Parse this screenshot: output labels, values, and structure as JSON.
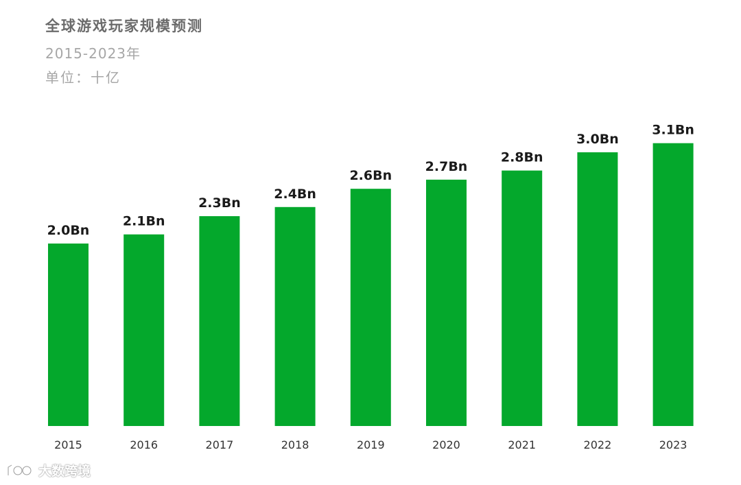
{
  "chart_data": {
    "type": "bar",
    "title": "全球游戏玩家规模预测",
    "subtitle": "2015-2023年",
    "unit_label": "单位：十亿",
    "categories": [
      "2015",
      "2016",
      "2017",
      "2018",
      "2019",
      "2020",
      "2021",
      "2022",
      "2023"
    ],
    "values": [
      2.0,
      2.1,
      2.3,
      2.4,
      2.6,
      2.7,
      2.8,
      3.0,
      3.1
    ],
    "data_labels": [
      "2.0Bn",
      "2.1Bn",
      "2.3Bn",
      "2.4Bn",
      "2.6Bn",
      "2.7Bn",
      "2.8Bn",
      "3.0Bn",
      "3.1Bn"
    ],
    "ylim": [
      0,
      3.2
    ],
    "grid": false,
    "legend": "none",
    "bar_color": "#04a82c"
  },
  "watermark": {
    "text": "大数跨境",
    "logo_icon": "circle-logo-icon"
  }
}
